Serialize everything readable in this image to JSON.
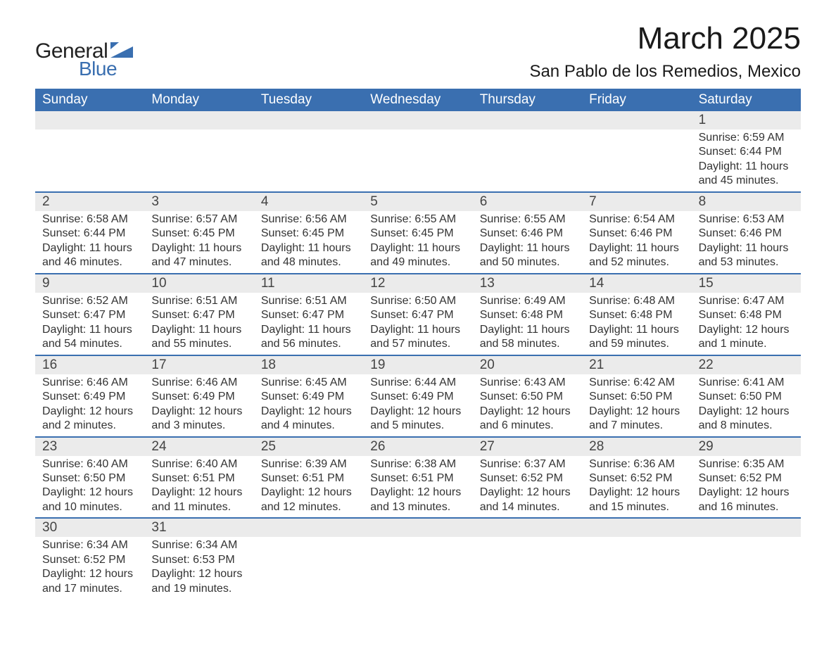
{
  "logo": {
    "text_primary": "General",
    "text_secondary": "Blue",
    "primary_color": "#222222",
    "secondary_color": "#3a6fb0",
    "shape_color": "#3a6fb0"
  },
  "title": "March 2025",
  "location": "San Pablo de los Remedios, Mexico",
  "colors": {
    "header_bg": "#3a6fb0",
    "header_text": "#ffffff",
    "daynum_bg": "#ebebeb",
    "row_border": "#3a6fb0",
    "body_text": "#333333",
    "page_bg": "#ffffff"
  },
  "weekdays": [
    "Sunday",
    "Monday",
    "Tuesday",
    "Wednesday",
    "Thursday",
    "Friday",
    "Saturday"
  ],
  "weeks": [
    [
      {
        "num": "",
        "sunrise": "",
        "sunset": "",
        "daylight": ""
      },
      {
        "num": "",
        "sunrise": "",
        "sunset": "",
        "daylight": ""
      },
      {
        "num": "",
        "sunrise": "",
        "sunset": "",
        "daylight": ""
      },
      {
        "num": "",
        "sunrise": "",
        "sunset": "",
        "daylight": ""
      },
      {
        "num": "",
        "sunrise": "",
        "sunset": "",
        "daylight": ""
      },
      {
        "num": "",
        "sunrise": "",
        "sunset": "",
        "daylight": ""
      },
      {
        "num": "1",
        "sunrise": "Sunrise: 6:59 AM",
        "sunset": "Sunset: 6:44 PM",
        "daylight": "Daylight: 11 hours and 45 minutes."
      }
    ],
    [
      {
        "num": "2",
        "sunrise": "Sunrise: 6:58 AM",
        "sunset": "Sunset: 6:44 PM",
        "daylight": "Daylight: 11 hours and 46 minutes."
      },
      {
        "num": "3",
        "sunrise": "Sunrise: 6:57 AM",
        "sunset": "Sunset: 6:45 PM",
        "daylight": "Daylight: 11 hours and 47 minutes."
      },
      {
        "num": "4",
        "sunrise": "Sunrise: 6:56 AM",
        "sunset": "Sunset: 6:45 PM",
        "daylight": "Daylight: 11 hours and 48 minutes."
      },
      {
        "num": "5",
        "sunrise": "Sunrise: 6:55 AM",
        "sunset": "Sunset: 6:45 PM",
        "daylight": "Daylight: 11 hours and 49 minutes."
      },
      {
        "num": "6",
        "sunrise": "Sunrise: 6:55 AM",
        "sunset": "Sunset: 6:46 PM",
        "daylight": "Daylight: 11 hours and 50 minutes."
      },
      {
        "num": "7",
        "sunrise": "Sunrise: 6:54 AM",
        "sunset": "Sunset: 6:46 PM",
        "daylight": "Daylight: 11 hours and 52 minutes."
      },
      {
        "num": "8",
        "sunrise": "Sunrise: 6:53 AM",
        "sunset": "Sunset: 6:46 PM",
        "daylight": "Daylight: 11 hours and 53 minutes."
      }
    ],
    [
      {
        "num": "9",
        "sunrise": "Sunrise: 6:52 AM",
        "sunset": "Sunset: 6:47 PM",
        "daylight": "Daylight: 11 hours and 54 minutes."
      },
      {
        "num": "10",
        "sunrise": "Sunrise: 6:51 AM",
        "sunset": "Sunset: 6:47 PM",
        "daylight": "Daylight: 11 hours and 55 minutes."
      },
      {
        "num": "11",
        "sunrise": "Sunrise: 6:51 AM",
        "sunset": "Sunset: 6:47 PM",
        "daylight": "Daylight: 11 hours and 56 minutes."
      },
      {
        "num": "12",
        "sunrise": "Sunrise: 6:50 AM",
        "sunset": "Sunset: 6:47 PM",
        "daylight": "Daylight: 11 hours and 57 minutes."
      },
      {
        "num": "13",
        "sunrise": "Sunrise: 6:49 AM",
        "sunset": "Sunset: 6:48 PM",
        "daylight": "Daylight: 11 hours and 58 minutes."
      },
      {
        "num": "14",
        "sunrise": "Sunrise: 6:48 AM",
        "sunset": "Sunset: 6:48 PM",
        "daylight": "Daylight: 11 hours and 59 minutes."
      },
      {
        "num": "15",
        "sunrise": "Sunrise: 6:47 AM",
        "sunset": "Sunset: 6:48 PM",
        "daylight": "Daylight: 12 hours and 1 minute."
      }
    ],
    [
      {
        "num": "16",
        "sunrise": "Sunrise: 6:46 AM",
        "sunset": "Sunset: 6:49 PM",
        "daylight": "Daylight: 12 hours and 2 minutes."
      },
      {
        "num": "17",
        "sunrise": "Sunrise: 6:46 AM",
        "sunset": "Sunset: 6:49 PM",
        "daylight": "Daylight: 12 hours and 3 minutes."
      },
      {
        "num": "18",
        "sunrise": "Sunrise: 6:45 AM",
        "sunset": "Sunset: 6:49 PM",
        "daylight": "Daylight: 12 hours and 4 minutes."
      },
      {
        "num": "19",
        "sunrise": "Sunrise: 6:44 AM",
        "sunset": "Sunset: 6:49 PM",
        "daylight": "Daylight: 12 hours and 5 minutes."
      },
      {
        "num": "20",
        "sunrise": "Sunrise: 6:43 AM",
        "sunset": "Sunset: 6:50 PM",
        "daylight": "Daylight: 12 hours and 6 minutes."
      },
      {
        "num": "21",
        "sunrise": "Sunrise: 6:42 AM",
        "sunset": "Sunset: 6:50 PM",
        "daylight": "Daylight: 12 hours and 7 minutes."
      },
      {
        "num": "22",
        "sunrise": "Sunrise: 6:41 AM",
        "sunset": "Sunset: 6:50 PM",
        "daylight": "Daylight: 12 hours and 8 minutes."
      }
    ],
    [
      {
        "num": "23",
        "sunrise": "Sunrise: 6:40 AM",
        "sunset": "Sunset: 6:50 PM",
        "daylight": "Daylight: 12 hours and 10 minutes."
      },
      {
        "num": "24",
        "sunrise": "Sunrise: 6:40 AM",
        "sunset": "Sunset: 6:51 PM",
        "daylight": "Daylight: 12 hours and 11 minutes."
      },
      {
        "num": "25",
        "sunrise": "Sunrise: 6:39 AM",
        "sunset": "Sunset: 6:51 PM",
        "daylight": "Daylight: 12 hours and 12 minutes."
      },
      {
        "num": "26",
        "sunrise": "Sunrise: 6:38 AM",
        "sunset": "Sunset: 6:51 PM",
        "daylight": "Daylight: 12 hours and 13 minutes."
      },
      {
        "num": "27",
        "sunrise": "Sunrise: 6:37 AM",
        "sunset": "Sunset: 6:52 PM",
        "daylight": "Daylight: 12 hours and 14 minutes."
      },
      {
        "num": "28",
        "sunrise": "Sunrise: 6:36 AM",
        "sunset": "Sunset: 6:52 PM",
        "daylight": "Daylight: 12 hours and 15 minutes."
      },
      {
        "num": "29",
        "sunrise": "Sunrise: 6:35 AM",
        "sunset": "Sunset: 6:52 PM",
        "daylight": "Daylight: 12 hours and 16 minutes."
      }
    ],
    [
      {
        "num": "30",
        "sunrise": "Sunrise: 6:34 AM",
        "sunset": "Sunset: 6:52 PM",
        "daylight": "Daylight: 12 hours and 17 minutes."
      },
      {
        "num": "31",
        "sunrise": "Sunrise: 6:34 AM",
        "sunset": "Sunset: 6:53 PM",
        "daylight": "Daylight: 12 hours and 19 minutes."
      },
      {
        "num": "",
        "sunrise": "",
        "sunset": "",
        "daylight": ""
      },
      {
        "num": "",
        "sunrise": "",
        "sunset": "",
        "daylight": ""
      },
      {
        "num": "",
        "sunrise": "",
        "sunset": "",
        "daylight": ""
      },
      {
        "num": "",
        "sunrise": "",
        "sunset": "",
        "daylight": ""
      },
      {
        "num": "",
        "sunrise": "",
        "sunset": "",
        "daylight": ""
      }
    ]
  ]
}
